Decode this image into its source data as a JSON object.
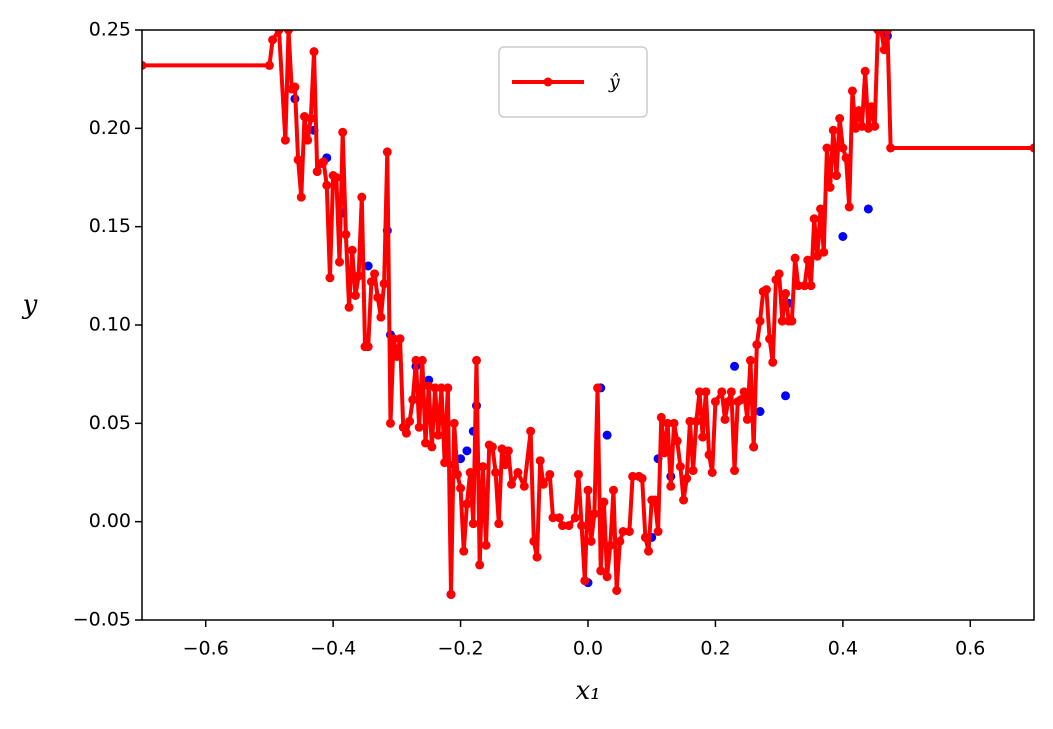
{
  "chart_data": {
    "type": "line",
    "xlabel": "x₁",
    "ylabel": "y",
    "xlim": [
      -0.7,
      0.7
    ],
    "ylim": [
      -0.05,
      0.25
    ],
    "xticks": [
      {
        "value": -0.6,
        "label": "−0.6"
      },
      {
        "value": -0.4,
        "label": "−0.4"
      },
      {
        "value": -0.2,
        "label": "−0.2"
      },
      {
        "value": 0,
        "label": "0.0"
      },
      0.2,
      0.4,
      0.6
    ],
    "yticks": [
      {
        "value": -0.05,
        "label": "−0.05"
      },
      {
        "value": 0,
        "label": "0.00"
      },
      0.05,
      {
        "value": 0.1,
        "label": "0.10"
      },
      0.15,
      {
        "value": 0.2,
        "label": "0.20"
      },
      0.25
    ],
    "legend": "upper center",
    "series": [
      {
        "type": "line",
        "name": "ŷ",
        "color": "#ff0000",
        "x": [
          -0.7,
          -0.5,
          -0.495,
          -0.485,
          -0.475,
          -0.47,
          -0.465,
          -0.46,
          -0.455,
          -0.45,
          -0.445,
          -0.44,
          -0.435,
          -0.43,
          -0.425,
          -0.42,
          -0.415,
          -0.41,
          -0.405,
          -0.4,
          -0.395,
          -0.39,
          -0.385,
          -0.38,
          -0.375,
          -0.37,
          -0.365,
          -0.36,
          -0.355,
          -0.35,
          -0.345,
          -0.34,
          -0.335,
          -0.33,
          -0.325,
          -0.32,
          -0.315,
          -0.31,
          -0.305,
          -0.3,
          -0.295,
          -0.29,
          -0.285,
          -0.28,
          -0.275,
          -0.27,
          -0.265,
          -0.26,
          -0.255,
          -0.25,
          -0.245,
          -0.24,
          -0.235,
          -0.23,
          -0.225,
          -0.22,
          -0.215,
          -0.21,
          -0.205,
          -0.2,
          -0.195,
          -0.19,
          -0.185,
          -0.18,
          -0.175,
          -0.17,
          -0.165,
          -0.16,
          -0.155,
          -0.15,
          -0.145,
          -0.14,
          -0.135,
          -0.13,
          -0.125,
          -0.12,
          -0.11,
          -0.1,
          -0.09,
          -0.085,
          -0.08,
          -0.075,
          -0.07,
          -0.06,
          -0.055,
          -0.045,
          -0.04,
          -0.03,
          -0.02,
          -0.015,
          -0.01,
          -0.005,
          0,
          0.005,
          0.01,
          0.015,
          0.02,
          0.025,
          0.03,
          0.035,
          0.04,
          0.045,
          0.05,
          0.055,
          0.065,
          0.07,
          0.08,
          0.085,
          0.09,
          0.095,
          0.1,
          0.105,
          0.11,
          0.115,
          0.12,
          0.125,
          0.13,
          0.135,
          0.14,
          0.145,
          0.15,
          0.155,
          0.16,
          0.165,
          0.17,
          0.175,
          0.18,
          0.185,
          0.19,
          0.195,
          0.2,
          0.21,
          0.215,
          0.22,
          0.225,
          0.23,
          0.235,
          0.24,
          0.245,
          0.25,
          0.255,
          0.26,
          0.265,
          0.27,
          0.275,
          0.28,
          0.285,
          0.29,
          0.295,
          0.3,
          0.305,
          0.31,
          0.315,
          0.32,
          0.325,
          0.33,
          0.34,
          0.345,
          0.35,
          0.355,
          0.36,
          0.365,
          0.37,
          0.375,
          0.38,
          0.385,
          0.39,
          0.395,
          0.4,
          0.405,
          0.41,
          0.415,
          0.42,
          0.425,
          0.43,
          0.435,
          0.44,
          0.445,
          0.45,
          0.455,
          0.46,
          0.465,
          0.47,
          0.475,
          0.7
        ],
        "values": [
          0.232,
          0.232,
          0.245,
          0.25,
          0.194,
          0.25,
          0.22,
          0.221,
          0.184,
          0.165,
          0.206,
          0.194,
          0.205,
          0.239,
          0.178,
          0.182,
          0.183,
          0.171,
          0.124,
          0.176,
          0.175,
          0.132,
          0.198,
          0.146,
          0.109,
          0.138,
          0.115,
          0.125,
          0.165,
          0.089,
          0.089,
          0.122,
          0.126,
          0.114,
          0.104,
          0.121,
          0.188,
          0.05,
          0.093,
          0.084,
          0.093,
          0.048,
          0.045,
          0.051,
          0.062,
          0.082,
          0.048,
          0.082,
          0.04,
          0.069,
          0.038,
          0.068,
          0.044,
          0.068,
          0.03,
          0.068,
          -0.037,
          0.05,
          0.024,
          0.017,
          -0.015,
          0.009,
          0.025,
          -0.001,
          0.082,
          -0.022,
          0.028,
          -0.012,
          0.039,
          0.038,
          0.025,
          -0.001,
          0.037,
          0.029,
          0.036,
          0.019,
          0.025,
          0.018,
          0.046,
          -0.01,
          -0.018,
          0.031,
          0.019,
          0.024,
          0.002,
          0.002,
          -0.002,
          -0.002,
          0.002,
          0.024,
          -0.002,
          -0.03,
          0.016,
          -0.01,
          0.004,
          0.068,
          -0.025,
          0.01,
          -0.028,
          -0.012,
          0.016,
          -0.035,
          -0.01,
          -0.005,
          -0.005,
          0.023,
          0.023,
          0.022,
          -0.008,
          -0.015,
          0.011,
          0.011,
          -0.005,
          0.053,
          0.035,
          0.05,
          0.018,
          0.05,
          0.041,
          0.028,
          0.011,
          0.022,
          0.051,
          0.026,
          0.051,
          0.066,
          0.043,
          0.066,
          0.034,
          0.025,
          0.061,
          0.066,
          0.052,
          0.061,
          0.066,
          0.026,
          0.061,
          0.062,
          0.066,
          0.052,
          0.082,
          0.038,
          0.09,
          0.102,
          0.117,
          0.118,
          0.093,
          0.081,
          0.123,
          0.126,
          0.102,
          0.116,
          0.102,
          0.102,
          0.134,
          0.12,
          0.12,
          0.133,
          0.12,
          0.154,
          0.135,
          0.159,
          0.137,
          0.19,
          0.17,
          0.199,
          0.176,
          0.205,
          0.19,
          0.185,
          0.16,
          0.219,
          0.2,
          0.209,
          0.201,
          0.229,
          0.2,
          0.211,
          0.201,
          0.25,
          0.25,
          0.24,
          0.25,
          0.19,
          0.19
        ]
      },
      {
        "type": "scatter",
        "color": "#0000ff",
        "x": [
          -0.46,
          -0.43,
          -0.41,
          -0.385,
          -0.345,
          -0.315,
          -0.31,
          -0.27,
          -0.25,
          -0.215,
          -0.21,
          -0.2,
          -0.19,
          -0.18,
          -0.175,
          0,
          0.02,
          0.03,
          0.1,
          0.11,
          0.13,
          0.23,
          0.26,
          0.27,
          0.31,
          0.315,
          0.4,
          0.44,
          0.47
        ],
        "values": [
          0.215,
          0.199,
          0.185,
          0.157,
          0.13,
          0.148,
          0.095,
          0.079,
          0.072,
          -0.037,
          0.029,
          0.032,
          0.036,
          0.046,
          0.059,
          -0.031,
          0.068,
          0.044,
          -0.008,
          0.032,
          0.023,
          0.079,
          0.038,
          0.056,
          0.064,
          0.111,
          0.145,
          0.159,
          0.247
        ]
      }
    ]
  }
}
